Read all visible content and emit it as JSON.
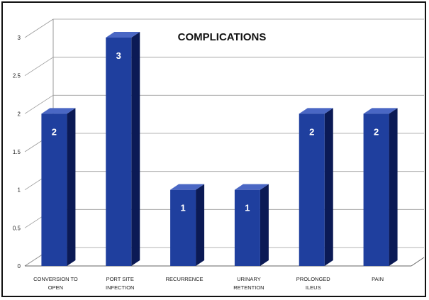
{
  "chart_data": {
    "type": "bar",
    "title": "COMPLICATIONS",
    "categories": [
      [
        "CONVERSION TO",
        "OPEN"
      ],
      [
        "PORT SITE",
        "INFECTION"
      ],
      [
        "RECURRENCE"
      ],
      [
        "URINARY",
        "RETENTION"
      ],
      [
        "PROLONGED",
        "ILEUS"
      ],
      [
        "PAIN"
      ]
    ],
    "values": [
      2,
      3,
      1,
      1,
      2,
      2
    ],
    "data_labels": [
      "2",
      "3",
      "1",
      "1",
      "2",
      "2"
    ],
    "yticks": [
      "0",
      "0.5",
      "1",
      "1.5",
      "2",
      "2.5",
      "3"
    ],
    "ylim": [
      0,
      3
    ],
    "grid": true,
    "style": "3d",
    "colors": {
      "bar_front": "#1f3f9e",
      "bar_side": "#0b1a55",
      "bar_top": "#4a67c4",
      "grid": "#9a9a9a"
    }
  }
}
